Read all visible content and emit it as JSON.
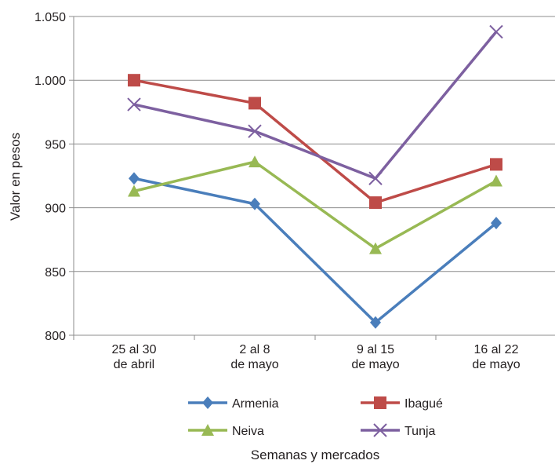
{
  "chart_data": {
    "type": "line",
    "title": "",
    "xlabel": "Semanas y mercados",
    "ylabel": "Valor en pesos",
    "categories": [
      [
        "25 al 30",
        "de abril"
      ],
      [
        "2 al 8",
        "de mayo"
      ],
      [
        "9 al 15",
        "de mayo"
      ],
      [
        "16 al 22",
        "de mayo"
      ]
    ],
    "ylim": [
      800,
      1050
    ],
    "yticks": [
      800,
      850,
      900,
      950,
      1000,
      1050
    ],
    "ytick_labels": [
      "800",
      "850",
      "900",
      "950",
      "1.000",
      "1.050"
    ],
    "grid": "horizontal",
    "legend_position": "bottom",
    "series": [
      {
        "name": "Armenia",
        "color": "#4a7ebb",
        "marker": "diamond",
        "values": [
          923,
          903,
          810,
          888
        ]
      },
      {
        "name": "Ibagué",
        "color": "#be4b48",
        "marker": "square",
        "values": [
          1000,
          982,
          904,
          934
        ]
      },
      {
        "name": "Neiva",
        "color": "#98b954",
        "marker": "triangle",
        "values": [
          913,
          936,
          868,
          921
        ]
      },
      {
        "name": "Tunja",
        "color": "#7d60a0",
        "marker": "x",
        "values": [
          981,
          960,
          923,
          1038
        ]
      }
    ]
  }
}
